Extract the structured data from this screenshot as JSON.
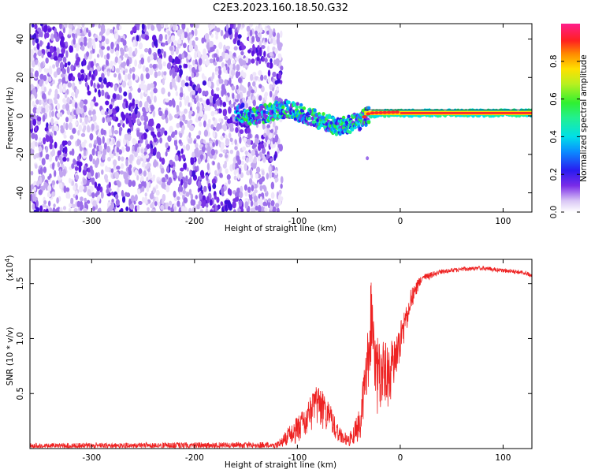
{
  "title": "C2E3.2023.160.18.50.G32",
  "colors": {
    "snr_line": "#ee2222",
    "spectrum_purple": "#6a0ae6",
    "ridge": "#ff2a2a"
  },
  "chart_data": [
    {
      "type": "heatmap",
      "title": "C2E3.2023.160.18.50.G32",
      "xlabel": "Height of straight line (km)",
      "ylabel": "Frequency (Hz)",
      "xlim": [
        -360,
        128
      ],
      "ylim": [
        -50,
        48
      ],
      "xticks": [
        -300,
        -200,
        -100,
        0,
        100
      ],
      "xtick_labels": [
        "-300",
        "-200",
        "-100",
        "0",
        "100"
      ],
      "yticks": [
        -40,
        -20,
        0,
        20,
        40
      ],
      "ytick_labels": [
        "-40",
        "-20",
        "0",
        "20",
        "40"
      ],
      "colorbar": {
        "label": "Normalized spectral amplitude",
        "range": [
          0,
          1
        ],
        "ticks": [
          0.0,
          0.2,
          0.4,
          0.6,
          0.8
        ],
        "tick_labels": [
          "0.0",
          "0.2",
          "0.4",
          "0.6",
          "0.8"
        ]
      },
      "description_values": {
        "broadband_noise_region_km": [
          -360,
          -115
        ],
        "noise_amplitude": 0.1,
        "band_center_hz": [
          {
            "x": -150,
            "f": -1
          },
          {
            "x": -110,
            "f": 4
          },
          {
            "x": -90,
            "f": 0
          },
          {
            "x": -60,
            "f": -6
          },
          {
            "x": -40,
            "f": -3
          },
          {
            "x": -30,
            "f": 1
          },
          {
            "x": 0,
            "f": 1.5
          },
          {
            "x": 128,
            "f": 1.5
          }
        ],
        "ridge_amplitude_from_km": {
          "x": 0,
          "amplitude": 0.95
        }
      }
    },
    {
      "type": "line",
      "xlabel": "Height of straight line (km)",
      "ylabel": "SNR (10 * v/v)",
      "y_multiplier_label": "(x10",
      "y_multiplier_exp": "4",
      "y_multiplier_close": ")",
      "xlim": [
        -360,
        128
      ],
      "ylim": [
        0,
        1.72
      ],
      "xticks": [
        -300,
        -200,
        -100,
        0,
        100
      ],
      "xtick_labels": [
        "-300",
        "-200",
        "-100",
        "0",
        "100"
      ],
      "yticks": [
        0.5,
        1.0,
        1.5
      ],
      "ytick_labels": [
        "0.5",
        "1.0",
        "1.5"
      ],
      "series": [
        {
          "color": "#ee2222",
          "envelope_x": [
            -360,
            -120,
            -110,
            -100,
            -90,
            -80,
            -70,
            -60,
            -50,
            -40,
            -33,
            -28,
            -25,
            -20,
            -10,
            0,
            10,
            20,
            40,
            60,
            80,
            100,
            120,
            128
          ],
          "envelope_y": [
            0.05,
            0.06,
            0.18,
            0.3,
            0.42,
            0.6,
            0.45,
            0.2,
            0.12,
            0.35,
            0.9,
            1.62,
            1.1,
            1.0,
            0.95,
            1.15,
            1.45,
            1.58,
            1.63,
            1.65,
            1.66,
            1.64,
            1.62,
            1.6
          ],
          "jitter": [
            0.06,
            0.06,
            0.15,
            0.25,
            0.3,
            0.4,
            0.3,
            0.15,
            0.1,
            0.3,
            0.6,
            0.8,
            0.8,
            0.7,
            0.55,
            0.4,
            0.2,
            0.08,
            0.04,
            0.04,
            0.04,
            0.04,
            0.04,
            0.06
          ]
        }
      ]
    }
  ]
}
